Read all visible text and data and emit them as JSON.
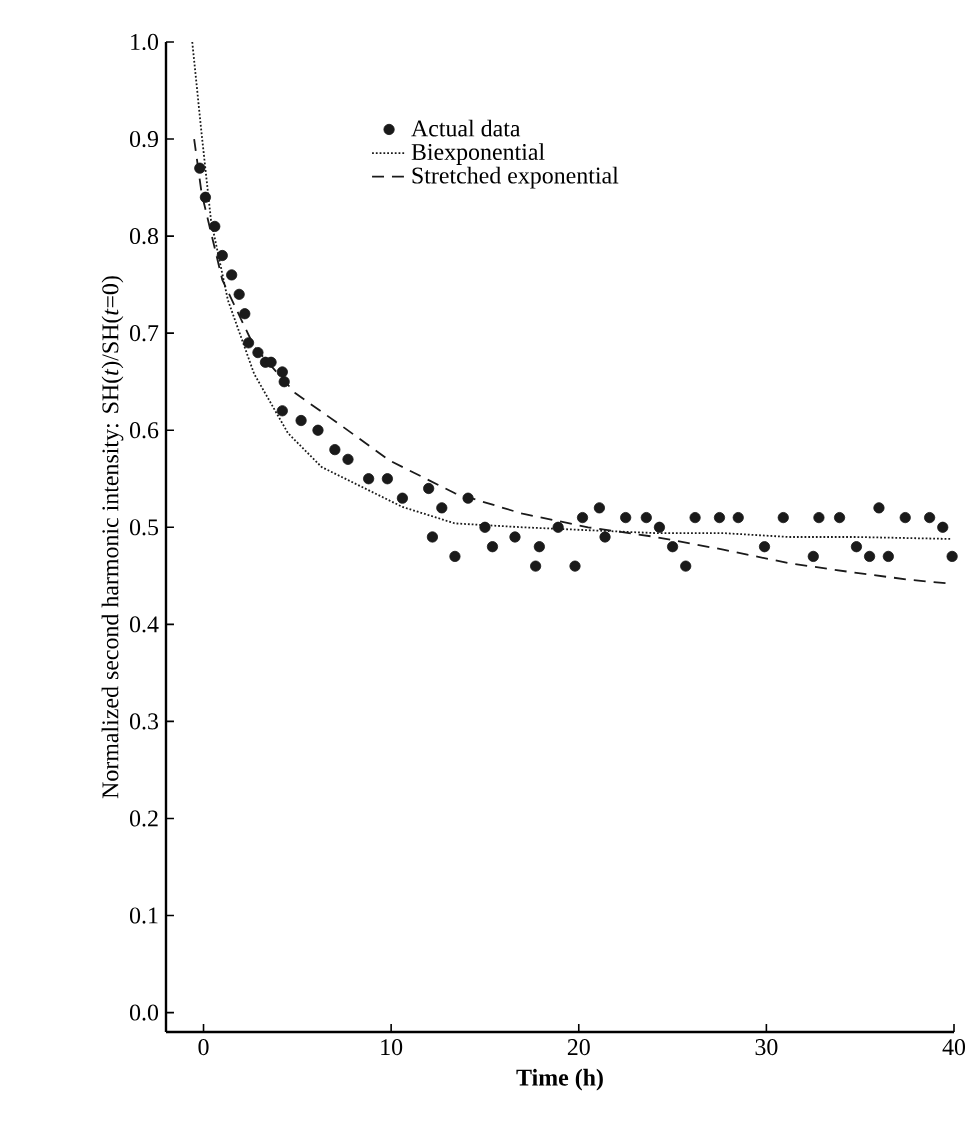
{
  "chart_data": {
    "type": "line",
    "xlabel": "Time (h)",
    "ylabel": "Normalized second harmonic intensity: SH(*t*)/SH(*t*=0)",
    "xlim": [
      -2,
      40
    ],
    "ylim": [
      -0.02,
      1.0
    ],
    "xticks": [
      0,
      10,
      20,
      30,
      40
    ],
    "yticks": [
      {
        "value": 0.0,
        "label": "0.0"
      },
      {
        "value": 0.1,
        "label": "0.1"
      },
      {
        "value": 0.2,
        "label": "0.2"
      },
      {
        "value": 0.3,
        "label": "0.3"
      },
      {
        "value": 0.4,
        "label": "0.4"
      },
      {
        "value": 0.5,
        "label": "0.5"
      },
      {
        "value": 0.6,
        "label": "0.6"
      },
      {
        "value": 0.7,
        "label": "0.7"
      },
      {
        "value": 0.8,
        "label": "0.8"
      },
      {
        "value": 0.9,
        "label": "0.9"
      },
      {
        "value": 1.0,
        "label": "1.0"
      }
    ],
    "legend": "top",
    "grid": false,
    "series": [
      {
        "name": "Actual data",
        "type": "scatter",
        "marker": "circle",
        "color": "#1a1a1a",
        "x": [
          -0.2,
          0.1,
          0.6,
          1.0,
          1.5,
          1.9,
          2.2,
          2.4,
          2.9,
          3.3,
          3.6,
          4.2,
          4.3,
          4.2,
          5.2,
          6.1,
          7.0,
          7.7,
          8.8,
          9.8,
          10.6,
          12.0,
          12.2,
          12.7,
          13.4,
          14.1,
          15.0,
          15.4,
          16.6,
          17.7,
          17.9,
          18.9,
          19.8,
          20.2,
          21.1,
          21.4,
          22.5,
          23.6,
          24.3,
          25.0,
          25.7,
          26.2,
          27.5,
          28.5,
          29.9,
          30.9,
          32.5,
          32.8,
          33.9,
          34.8,
          35.5,
          36.0,
          36.5,
          37.4,
          38.7,
          39.4,
          39.9
        ],
        "values": [
          0.87,
          0.84,
          0.81,
          0.78,
          0.76,
          0.74,
          0.72,
          0.69,
          0.68,
          0.67,
          0.67,
          0.66,
          0.65,
          0.62,
          0.61,
          0.6,
          0.58,
          0.57,
          0.55,
          0.55,
          0.53,
          0.54,
          0.49,
          0.52,
          0.47,
          0.53,
          0.5,
          0.48,
          0.49,
          0.46,
          0.48,
          0.5,
          0.46,
          0.51,
          0.52,
          0.49,
          0.51,
          0.51,
          0.5,
          0.48,
          0.46,
          0.51,
          0.51,
          0.51,
          0.48,
          0.51,
          0.47,
          0.51,
          0.51,
          0.48,
          0.47,
          0.52,
          0.47,
          0.51,
          0.51,
          0.5,
          0.47
        ]
      },
      {
        "name": "Biexponential",
        "type": "line",
        "marker": "none",
        "line_style": "dotted",
        "color": "#1a1a1a",
        "x": [
          -0.6,
          -0.1,
          0.4,
          1.3,
          2.7,
          4.5,
          6.3,
          8.4,
          10.6,
          13.4,
          17.0,
          20.5,
          24.1,
          27.7,
          31.2,
          34.8,
          39.8
        ],
        "values": [
          1.0,
          0.905,
          0.816,
          0.734,
          0.658,
          0.597,
          0.562,
          0.542,
          0.521,
          0.504,
          0.5,
          0.497,
          0.494,
          0.494,
          0.49,
          0.49,
          0.488
        ]
      },
      {
        "name": "Stretched exponential",
        "type": "line",
        "marker": "none",
        "line_style": "dashed",
        "color": "#1a1a1a",
        "x": [
          -0.5,
          -0.1,
          1.0,
          2.7,
          4.9,
          7.4,
          9.9,
          13.4,
          17.0,
          20.5,
          24.1,
          27.7,
          31.2,
          34.8,
          37.6,
          39.8
        ],
        "values": [
          0.9,
          0.844,
          0.755,
          0.686,
          0.638,
          0.604,
          0.569,
          0.535,
          0.514,
          0.5,
          0.49,
          0.477,
          0.463,
          0.453,
          0.446,
          0.442
        ]
      }
    ]
  }
}
